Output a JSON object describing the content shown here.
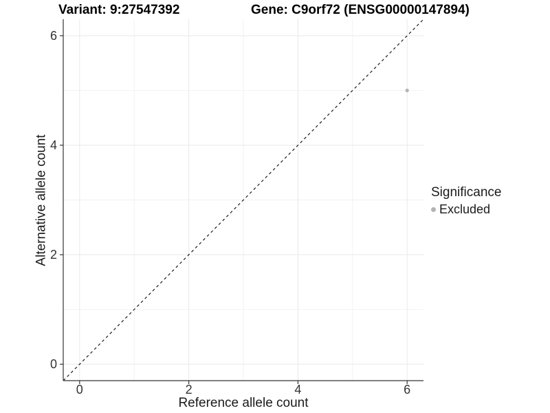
{
  "chart_data": {
    "type": "scatter",
    "titles": [
      "Variant: 9:27547392",
      "Gene: C9orf72 (ENSG00000147894)"
    ],
    "xlabel": "Reference allele count",
    "ylabel": "Alternative allele count",
    "xlim": [
      -0.3,
      6.3
    ],
    "ylim": [
      -0.3,
      6.3
    ],
    "x_ticks": [
      0,
      2,
      4,
      6
    ],
    "y_ticks": [
      0,
      2,
      4,
      6
    ],
    "x_minor_gridlines": [
      1,
      3,
      5
    ],
    "y_minor_gridlines": [
      1,
      3,
      5
    ],
    "grid": true,
    "identity_line": {
      "equation": "y = x",
      "style": "dashed",
      "span": "full-panel"
    },
    "series": [
      {
        "name": "Excluded",
        "color": "#b3b3b3",
        "points": [
          {
            "x": 6,
            "y": 5
          }
        ]
      }
    ],
    "legend": {
      "title": "Significance",
      "position": "right",
      "items": [
        {
          "label": "Excluded",
          "color": "#b3b3b3"
        }
      ]
    }
  },
  "colors": {
    "background": "#ffffff",
    "grid_major": "#e8e8e8",
    "grid_minor": "#f2f2f2",
    "axis_line": "#333333",
    "tick_mark": "#333333",
    "tick_label": "#333333",
    "identity_line": "#1a1a1a",
    "point": "#b3b3b3"
  }
}
